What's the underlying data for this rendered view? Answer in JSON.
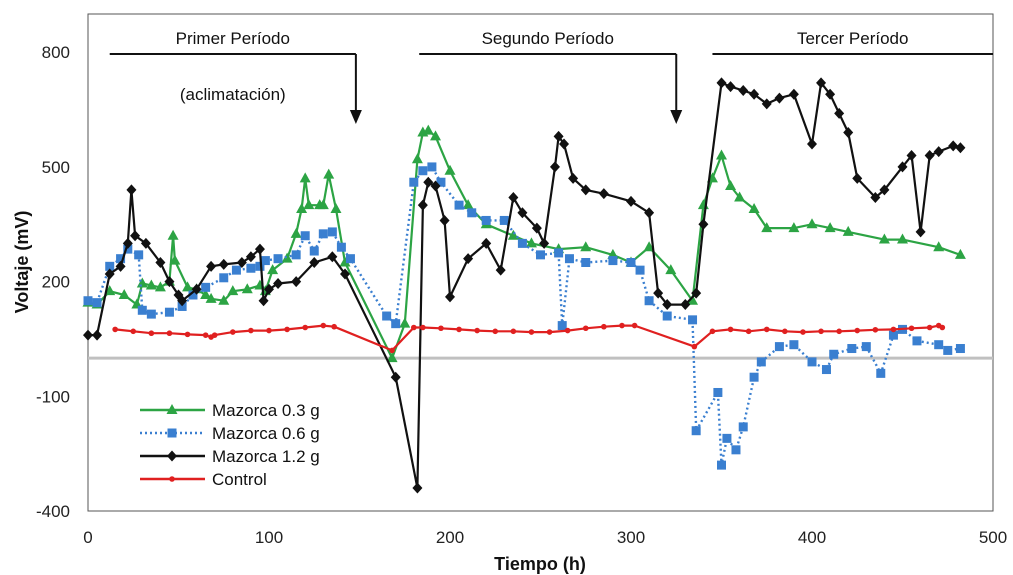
{
  "chart_data": {
    "type": "line",
    "xlabel": "Tiempo (h)",
    "ylabel": "Voltaje (mV)",
    "xlim": [
      0,
      500
    ],
    "ylim": [
      -400,
      900
    ],
    "x_ticks": [
      0,
      100,
      200,
      300,
      400,
      500
    ],
    "y_ticks": [
      -400,
      -100,
      200,
      500,
      800
    ],
    "grid": false,
    "legend_position": "bottom-left",
    "periods": [
      {
        "label": "Primer Período",
        "sublabel": "(aclimatación)",
        "x_start": 12,
        "x_end": 148,
        "arrow_x": 148
      },
      {
        "label": "Segundo Período",
        "sublabel": "",
        "x_start": 183,
        "x_end": 325,
        "arrow_x": 325
      },
      {
        "label": "Tercer Período",
        "sublabel": "",
        "x_start": 345,
        "x_end": 500,
        "arrow_x": null
      }
    ],
    "series": [
      {
        "name": "Mazorca 0.3 g",
        "color": "#2ca444",
        "line_style": "solid",
        "marker": "triangle",
        "points": [
          [
            0,
            145
          ],
          [
            5,
            140
          ],
          [
            12,
            175
          ],
          [
            20,
            165
          ],
          [
            27,
            140
          ],
          [
            30,
            195
          ],
          [
            35,
            190
          ],
          [
            40,
            185
          ],
          [
            45,
            200
          ],
          [
            47,
            320
          ],
          [
            48,
            255
          ],
          [
            55,
            185
          ],
          [
            60,
            180
          ],
          [
            65,
            165
          ],
          [
            68,
            155
          ],
          [
            75,
            150
          ],
          [
            80,
            175
          ],
          [
            88,
            180
          ],
          [
            95,
            190
          ],
          [
            98,
            175
          ],
          [
            102,
            230
          ],
          [
            110,
            260
          ],
          [
            115,
            325
          ],
          [
            118,
            390
          ],
          [
            120,
            470
          ],
          [
            122,
            400
          ],
          [
            128,
            400
          ],
          [
            130,
            400
          ],
          [
            133,
            480
          ],
          [
            137,
            390
          ],
          [
            142,
            250
          ],
          [
            168,
            0
          ],
          [
            175,
            90
          ],
          [
            182,
            520
          ],
          [
            185,
            590
          ],
          [
            188,
            595
          ],
          [
            192,
            580
          ],
          [
            200,
            490
          ],
          [
            210,
            400
          ],
          [
            220,
            350
          ],
          [
            235,
            320
          ],
          [
            245,
            300
          ],
          [
            260,
            285
          ],
          [
            275,
            290
          ],
          [
            290,
            270
          ],
          [
            300,
            250
          ],
          [
            310,
            290
          ],
          [
            322,
            230
          ],
          [
            334,
            150
          ],
          [
            340,
            400
          ],
          [
            345,
            470
          ],
          [
            350,
            530
          ],
          [
            355,
            450
          ],
          [
            360,
            420
          ],
          [
            368,
            390
          ],
          [
            375,
            340
          ],
          [
            390,
            340
          ],
          [
            400,
            350
          ],
          [
            410,
            340
          ],
          [
            420,
            330
          ],
          [
            440,
            310
          ],
          [
            450,
            310
          ],
          [
            470,
            290
          ],
          [
            482,
            270
          ]
        ]
      },
      {
        "name": "Mazorca 0.6 g",
        "color": "#3a7fd0",
        "line_style": "dotted",
        "marker": "square",
        "points": [
          [
            0,
            150
          ],
          [
            5,
            145
          ],
          [
            12,
            240
          ],
          [
            18,
            260
          ],
          [
            22,
            285
          ],
          [
            28,
            270
          ],
          [
            30,
            125
          ],
          [
            35,
            115
          ],
          [
            45,
            120
          ],
          [
            52,
            135
          ],
          [
            58,
            165
          ],
          [
            65,
            185
          ],
          [
            75,
            210
          ],
          [
            82,
            230
          ],
          [
            90,
            235
          ],
          [
            95,
            240
          ],
          [
            98,
            255
          ],
          [
            105,
            260
          ],
          [
            115,
            270
          ],
          [
            120,
            320
          ],
          [
            125,
            280
          ],
          [
            130,
            325
          ],
          [
            135,
            330
          ],
          [
            140,
            290
          ],
          [
            145,
            260
          ],
          [
            165,
            110
          ],
          [
            170,
            90
          ],
          [
            180,
            460
          ],
          [
            185,
            490
          ],
          [
            190,
            500
          ],
          [
            195,
            460
          ],
          [
            205,
            400
          ],
          [
            212,
            380
          ],
          [
            220,
            360
          ],
          [
            230,
            360
          ],
          [
            240,
            300
          ],
          [
            250,
            270
          ],
          [
            260,
            275
          ],
          [
            262,
            85
          ],
          [
            266,
            260
          ],
          [
            275,
            250
          ],
          [
            290,
            255
          ],
          [
            300,
            250
          ],
          [
            305,
            230
          ],
          [
            310,
            150
          ],
          [
            320,
            110
          ],
          [
            334,
            100
          ],
          [
            336,
            -190
          ],
          [
            348,
            -90
          ],
          [
            350,
            -280
          ],
          [
            353,
            -210
          ],
          [
            358,
            -240
          ],
          [
            362,
            -180
          ],
          [
            368,
            -50
          ],
          [
            372,
            -10
          ],
          [
            382,
            30
          ],
          [
            390,
            35
          ],
          [
            400,
            -10
          ],
          [
            408,
            -30
          ],
          [
            412,
            10
          ],
          [
            422,
            25
          ],
          [
            430,
            30
          ],
          [
            438,
            -40
          ],
          [
            445,
            60
          ],
          [
            450,
            75
          ],
          [
            458,
            45
          ],
          [
            470,
            35
          ],
          [
            475,
            20
          ],
          [
            482,
            25
          ]
        ]
      },
      {
        "name": "Mazorca 1.2 g",
        "color": "#111111",
        "line_style": "solid",
        "marker": "diamond",
        "points": [
          [
            0,
            60
          ],
          [
            5,
            60
          ],
          [
            12,
            220
          ],
          [
            18,
            240
          ],
          [
            22,
            300
          ],
          [
            24,
            440
          ],
          [
            26,
            320
          ],
          [
            32,
            300
          ],
          [
            40,
            250
          ],
          [
            45,
            200
          ],
          [
            50,
            165
          ],
          [
            52,
            150
          ],
          [
            60,
            180
          ],
          [
            68,
            240
          ],
          [
            75,
            245
          ],
          [
            85,
            250
          ],
          [
            90,
            265
          ],
          [
            95,
            285
          ],
          [
            97,
            150
          ],
          [
            100,
            180
          ],
          [
            105,
            195
          ],
          [
            115,
            200
          ],
          [
            125,
            250
          ],
          [
            135,
            265
          ],
          [
            142,
            220
          ],
          [
            170,
            -50
          ],
          [
            182,
            -340
          ],
          [
            185,
            400
          ],
          [
            188,
            460
          ],
          [
            192,
            450
          ],
          [
            197,
            360
          ],
          [
            200,
            160
          ],
          [
            210,
            260
          ],
          [
            220,
            300
          ],
          [
            228,
            230
          ],
          [
            235,
            420
          ],
          [
            240,
            380
          ],
          [
            248,
            340
          ],
          [
            252,
            300
          ],
          [
            258,
            500
          ],
          [
            260,
            580
          ],
          [
            263,
            560
          ],
          [
            268,
            470
          ],
          [
            275,
            440
          ],
          [
            285,
            430
          ],
          [
            300,
            410
          ],
          [
            310,
            380
          ],
          [
            315,
            170
          ],
          [
            320,
            140
          ],
          [
            330,
            140
          ],
          [
            336,
            170
          ],
          [
            340,
            350
          ],
          [
            350,
            720
          ],
          [
            355,
            710
          ],
          [
            362,
            700
          ],
          [
            368,
            690
          ],
          [
            375,
            665
          ],
          [
            382,
            680
          ],
          [
            390,
            690
          ],
          [
            400,
            560
          ],
          [
            405,
            720
          ],
          [
            410,
            690
          ],
          [
            415,
            640
          ],
          [
            420,
            590
          ],
          [
            425,
            470
          ],
          [
            435,
            420
          ],
          [
            440,
            440
          ],
          [
            450,
            500
          ],
          [
            455,
            530
          ],
          [
            460,
            330
          ],
          [
            465,
            530
          ],
          [
            470,
            540
          ],
          [
            478,
            555
          ],
          [
            482,
            550
          ]
        ]
      },
      {
        "name": "Control",
        "color": "#e02020",
        "line_style": "solid",
        "marker": "dot",
        "points": [
          [
            15,
            75
          ],
          [
            25,
            70
          ],
          [
            35,
            65
          ],
          [
            45,
            65
          ],
          [
            55,
            62
          ],
          [
            65,
            60
          ],
          [
            68,
            55
          ],
          [
            70,
            60
          ],
          [
            80,
            68
          ],
          [
            90,
            72
          ],
          [
            100,
            72
          ],
          [
            110,
            75
          ],
          [
            120,
            80
          ],
          [
            130,
            85
          ],
          [
            136,
            82
          ],
          [
            168,
            20
          ],
          [
            180,
            80
          ],
          [
            185,
            80
          ],
          [
            195,
            78
          ],
          [
            205,
            75
          ],
          [
            215,
            72
          ],
          [
            225,
            70
          ],
          [
            235,
            70
          ],
          [
            245,
            68
          ],
          [
            255,
            68
          ],
          [
            265,
            72
          ],
          [
            275,
            78
          ],
          [
            285,
            82
          ],
          [
            295,
            85
          ],
          [
            302,
            85
          ],
          [
            335,
            30
          ],
          [
            345,
            70
          ],
          [
            355,
            75
          ],
          [
            365,
            70
          ],
          [
            375,
            75
          ],
          [
            385,
            70
          ],
          [
            395,
            68
          ],
          [
            405,
            70
          ],
          [
            415,
            70
          ],
          [
            425,
            72
          ],
          [
            435,
            74
          ],
          [
            445,
            75
          ],
          [
            455,
            78
          ],
          [
            465,
            80
          ],
          [
            470,
            85
          ],
          [
            472,
            80
          ]
        ]
      }
    ]
  }
}
